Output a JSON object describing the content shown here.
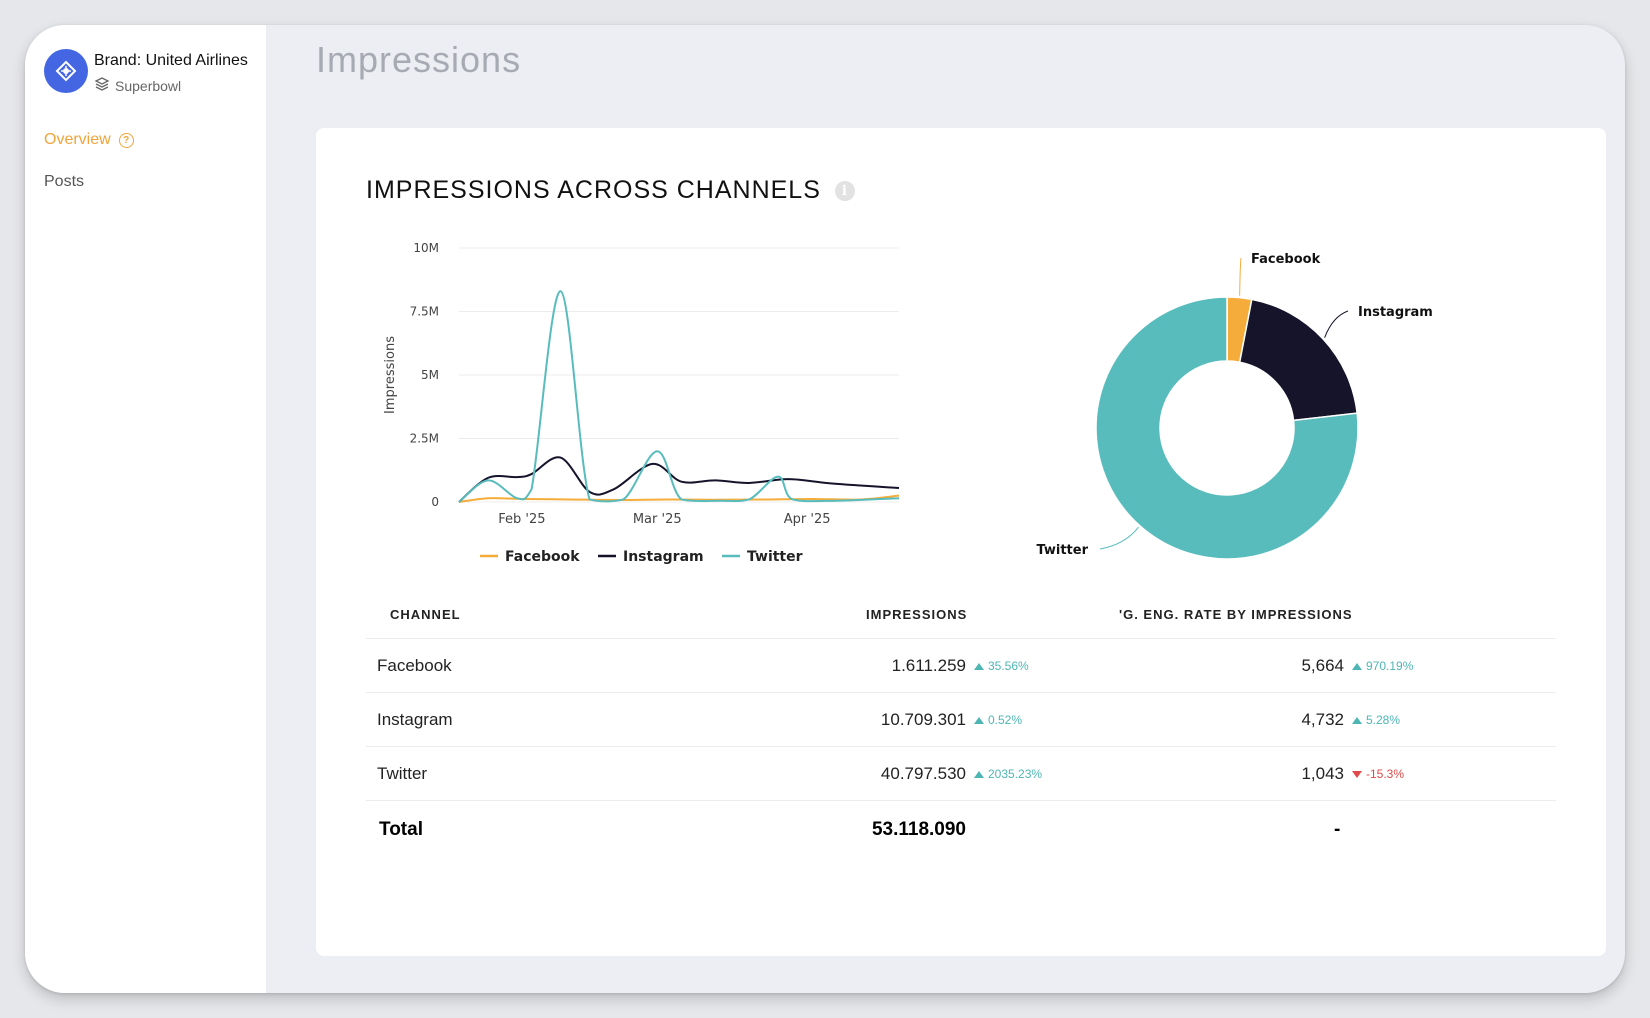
{
  "sidebar": {
    "brand_name": "Brand: United Airlines",
    "brand_sub": "Superbowl",
    "nav": [
      {
        "label": "Overview",
        "active": true
      },
      {
        "label": "Posts",
        "active": false
      }
    ]
  },
  "header": {
    "title": "Impressions"
  },
  "card": {
    "title": "IMPRESSIONS ACROSS CHANNELS",
    "info_icon": "info-icon"
  },
  "colors": {
    "facebook": "#f5ac3a",
    "instagram": "#15142b",
    "twitter": "#58bcbd",
    "accent": "#f0a43a",
    "brand": "#4466e3"
  },
  "chart_data": [
    {
      "type": "line",
      "ylabel": "Impressions",
      "y_ticks": [
        "10M",
        "7.5M",
        "5M",
        "2.5M",
        "0"
      ],
      "ylim": [
        0,
        10000000
      ],
      "x_ticks": [
        {
          "label": "Feb '25",
          "x": 25
        },
        {
          "label": "Mar '25",
          "x": 53
        },
        {
          "label": "Apr '25",
          "x": 84
        }
      ],
      "xlim": [
        12,
        103
      ],
      "legend": [
        "Facebook",
        "Instagram",
        "Twitter"
      ],
      "series": [
        {
          "name": "Facebook",
          "points": [
            [
              12,
              0
            ],
            [
              18,
              150000
            ],
            [
              25,
              120000
            ],
            [
              35,
              100000
            ],
            [
              45,
              80000
            ],
            [
              55,
              100000
            ],
            [
              65,
              90000
            ],
            [
              75,
              100000
            ],
            [
              85,
              120000
            ],
            [
              95,
              100000
            ],
            [
              103,
              250000
            ]
          ]
        },
        {
          "name": "Instagram",
          "points": [
            [
              12,
              0
            ],
            [
              18,
              950000
            ],
            [
              24,
              980000
            ],
            [
              27,
              1100000
            ],
            [
              33,
              1750000
            ],
            [
              39,
              400000
            ],
            [
              44,
              500000
            ],
            [
              52,
              1500000
            ],
            [
              58,
              800000
            ],
            [
              65,
              850000
            ],
            [
              72,
              750000
            ],
            [
              80,
              900000
            ],
            [
              88,
              750000
            ],
            [
              95,
              650000
            ],
            [
              103,
              550000
            ]
          ]
        },
        {
          "name": "Twitter",
          "points": [
            [
              12,
              0
            ],
            [
              18,
              850000
            ],
            [
              24,
              150000
            ],
            [
              27,
              500000
            ],
            [
              33,
              8300000
            ],
            [
              39,
              100000
            ],
            [
              46,
              100000
            ],
            [
              53,
              2000000
            ],
            [
              58,
              100000
            ],
            [
              66,
              50000
            ],
            [
              72,
              100000
            ],
            [
              78,
              1000000
            ],
            [
              81,
              100000
            ],
            [
              90,
              50000
            ],
            [
              103,
              150000
            ]
          ]
        }
      ]
    },
    {
      "type": "pie",
      "categories": [
        "Facebook",
        "Instagram",
        "Twitter"
      ],
      "values": [
        1611259,
        10709301,
        40797530
      ]
    }
  ],
  "table": {
    "headers": [
      "CHANNEL",
      "IMPRESSIONS",
      "'G. ENG. RATE BY IMPRESSIONS"
    ],
    "rows": [
      {
        "channel": "Facebook",
        "impressions": "1.611.259",
        "imp_change": "35.56%",
        "imp_dir": "up",
        "rate": "5,664",
        "rate_change": "970.19%",
        "rate_dir": "up"
      },
      {
        "channel": "Instagram",
        "impressions": "10.709.301",
        "imp_change": "0.52%",
        "imp_dir": "up",
        "rate": "4,732",
        "rate_change": "5.28%",
        "rate_dir": "up"
      },
      {
        "channel": "Twitter",
        "impressions": "40.797.530",
        "imp_change": "2035.23%",
        "imp_dir": "up",
        "rate": "1,043",
        "rate_change": "-15.3%",
        "rate_dir": "down"
      }
    ],
    "total": {
      "label": "Total",
      "impressions": "53.118.090",
      "rate": "-"
    }
  }
}
